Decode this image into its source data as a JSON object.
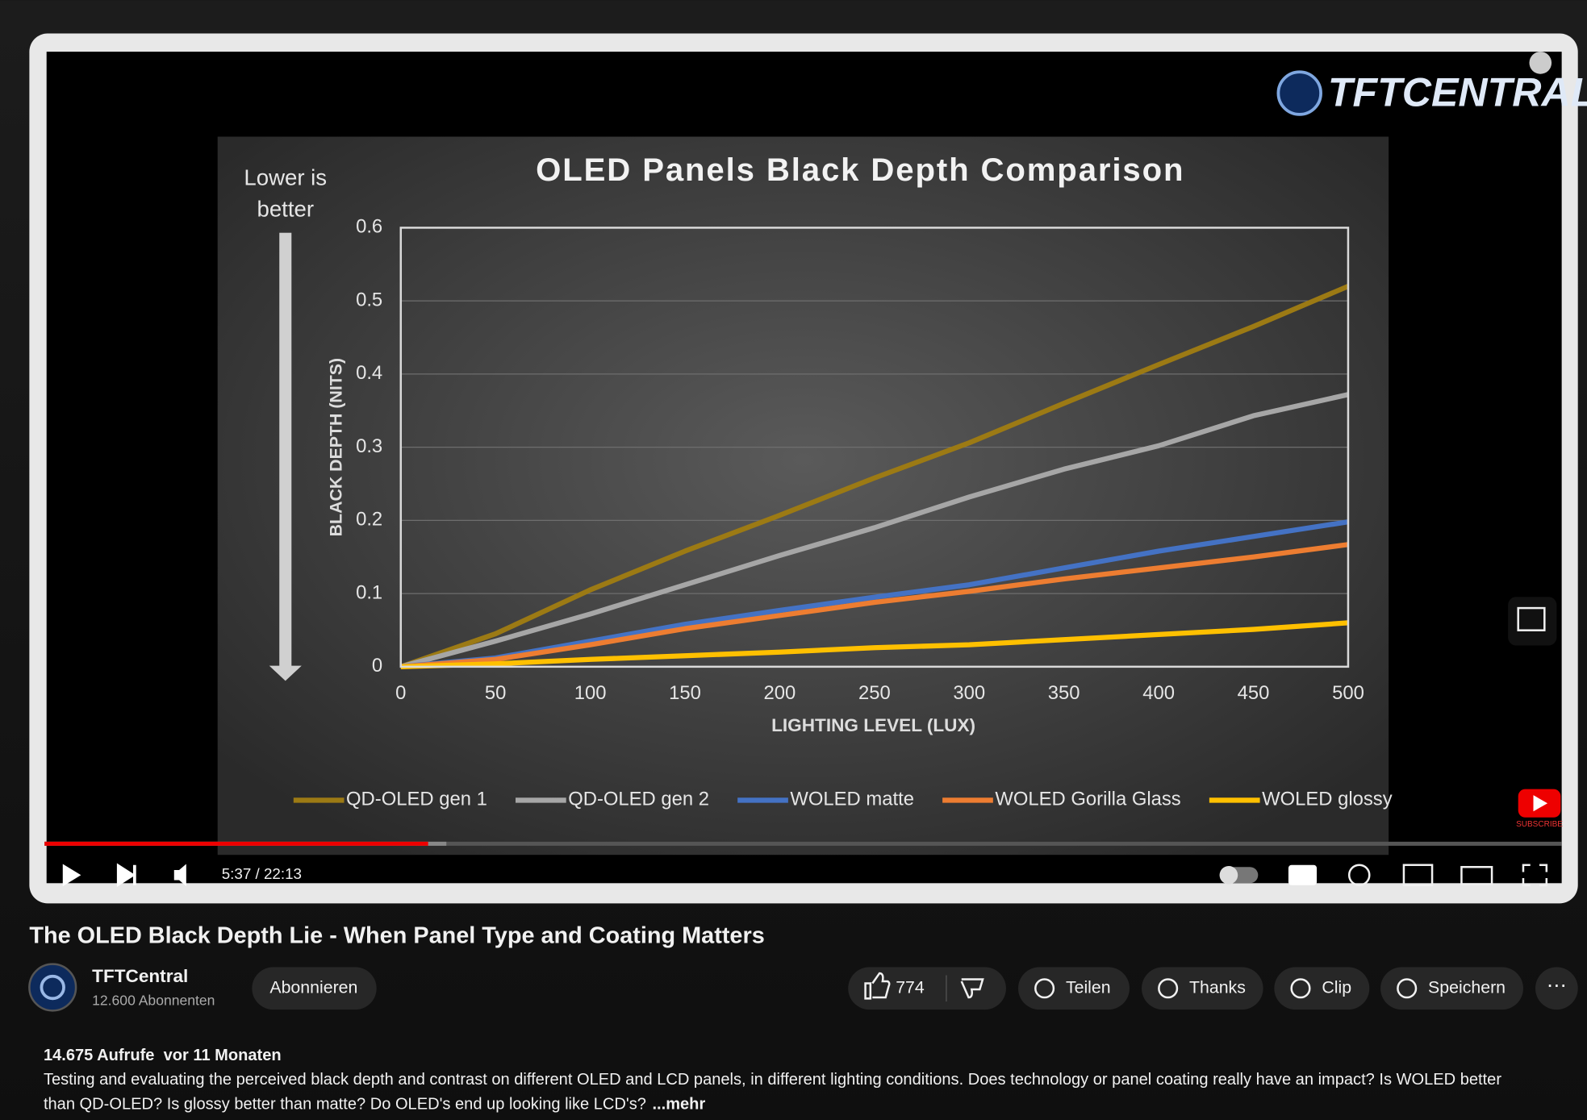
{
  "video": {
    "logo": "TFTCENTRAL",
    "time": "5:37 / 22:13",
    "subscribe_badge": "SUBSCRIBE"
  },
  "chart_data": {
    "type": "line",
    "title": "OLED Panels Black Depth Comparison",
    "annotation": [
      "Lower is",
      "better"
    ],
    "x_label": "LIGHTING LEVEL (LUX)",
    "y_label": "BLACK DEPTH (NITS)",
    "x": [
      0,
      50,
      100,
      150,
      200,
      250,
      300,
      350,
      400,
      450,
      500
    ],
    "xlim": [
      0,
      500
    ],
    "xticks": [
      0,
      50,
      100,
      150,
      200,
      250,
      300,
      350,
      400,
      450,
      500
    ],
    "ylim": [
      0,
      0.6
    ],
    "yticks": [
      0,
      0.1,
      0.2,
      0.3,
      0.4,
      0.5,
      0.6
    ],
    "grid": true,
    "legend": "bottom",
    "series": [
      {
        "name": "QD-OLED gen 1",
        "color": "#9c7a14",
        "values": [
          0,
          0.045,
          0.105,
          0.158,
          0.207,
          0.258,
          0.306,
          0.36,
          0.413,
          0.465,
          0.52
        ]
      },
      {
        "name": "QD-OLED gen 2",
        "color": "#a6a6a6",
        "values": [
          0,
          0.035,
          0.072,
          0.112,
          0.152,
          0.19,
          0.232,
          0.27,
          0.302,
          0.343,
          0.372
        ]
      },
      {
        "name": "WOLED matte",
        "color": "#4472c4",
        "values": [
          0,
          0.012,
          0.035,
          0.058,
          0.077,
          0.095,
          0.112,
          0.135,
          0.158,
          0.178,
          0.198
        ]
      },
      {
        "name": "WOLED Gorilla Glass",
        "color": "#ed7d31",
        "values": [
          0,
          0.01,
          0.03,
          0.052,
          0.07,
          0.088,
          0.103,
          0.12,
          0.135,
          0.15,
          0.167
        ]
      },
      {
        "name": "WOLED glossy",
        "color": "#ffc000",
        "values": [
          0,
          0.004,
          0.01,
          0.015,
          0.02,
          0.026,
          0.03,
          0.037,
          0.044,
          0.051,
          0.06
        ]
      }
    ]
  },
  "info": {
    "title": "The OLED Black Depth Lie - When Panel Type and Coating Matters",
    "channel": "TFTCentral",
    "subscribers": "12.600 Abonnenten",
    "subscribe": "Abonnieren",
    "likes": "774",
    "actions": [
      "Teilen",
      "Thanks",
      "Clip",
      "Speichern"
    ],
    "meta": "14.675 Aufrufe  vor 11 Monaten",
    "description": [
      "Testing and evaluating the perceived black depth and contrast on different OLED and LCD panels, in different lighting conditions. Does technology or panel coating really have an impact? Is WOLED better",
      "than QD-OLED? Is glossy better than matte? Do OLED's end up looking like LCD's?"
    ],
    "more": "...mehr"
  }
}
